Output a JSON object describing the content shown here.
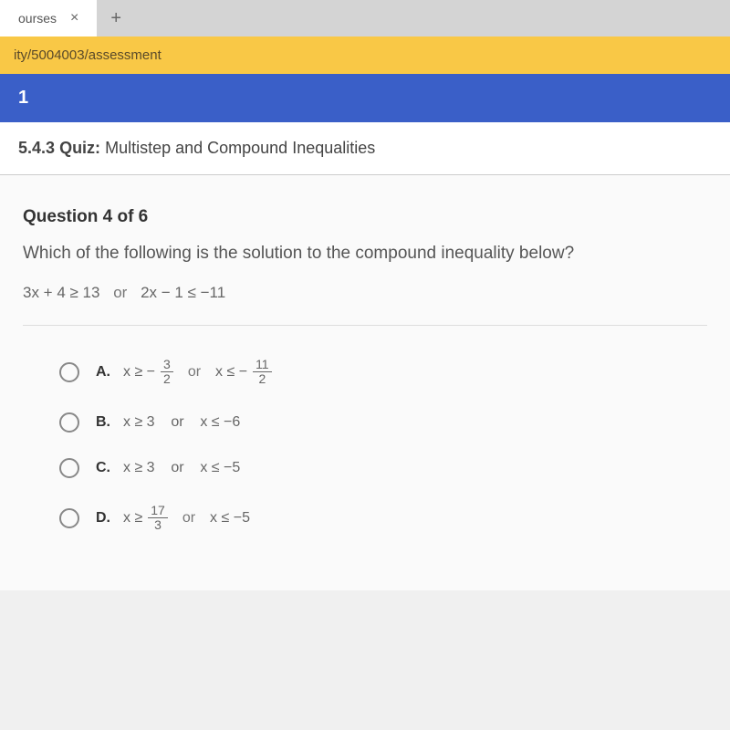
{
  "tabs": {
    "active_label": "ourses",
    "close": "×",
    "new": "+"
  },
  "address": "ity/5004003/assessment",
  "nav_number": "1",
  "quiz": {
    "code": "5.4.3",
    "type": "Quiz:",
    "title": "Multistep and Compound Inequalities"
  },
  "question": {
    "number": "Question 4 of 6",
    "text": "Which of the following is the solution to the compound inequality below?",
    "inequality_left": "3x + 4 ≥ 13",
    "inequality_or": "or",
    "inequality_right": "2x − 1 ≤ −11"
  },
  "answers": {
    "a": {
      "label": "A.",
      "pre1": "x ≥ −",
      "frac1_num": "3",
      "frac1_den": "2",
      "or": "or",
      "pre2": "x ≤ −",
      "frac2_num": "11",
      "frac2_den": "2"
    },
    "b": {
      "label": "B.",
      "text": "x ≥ 3    or    x ≤ −6"
    },
    "c": {
      "label": "C.",
      "text": "x ≥ 3    or    x ≤ −5"
    },
    "d": {
      "label": "D.",
      "pre1": "x ≥",
      "frac1_num": "17",
      "frac1_den": "3",
      "or": "or",
      "post": "x ≤ −5"
    }
  },
  "colors": {
    "tab_bg": "#d4d4d4",
    "address_bg": "#f9c846",
    "nav_bg": "#3a5fc8",
    "content_bg": "#fafafa"
  }
}
